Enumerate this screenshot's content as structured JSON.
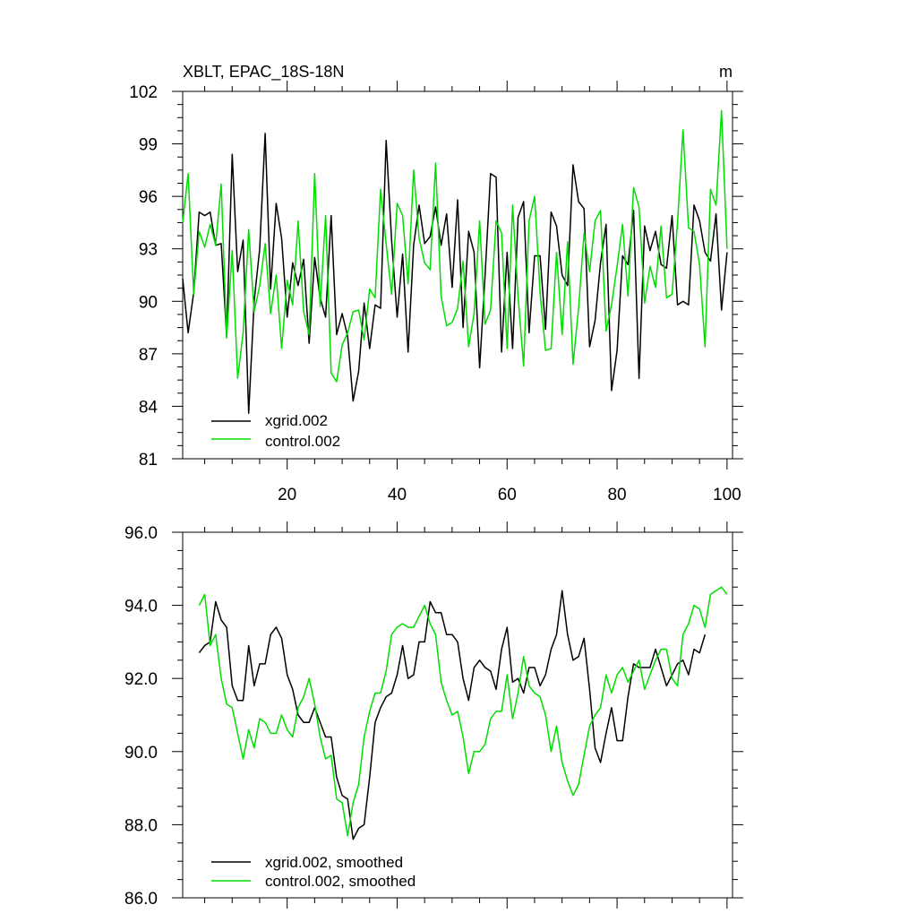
{
  "chart_data": [
    {
      "type": "line",
      "title": "XBLT, EPAC_18S-18N",
      "units": "m",
      "xlim": [
        1,
        101
      ],
      "ylim": [
        81,
        102
      ],
      "x_ticks": [
        20,
        40,
        60,
        80,
        100
      ],
      "y_ticks": [
        81,
        84,
        87,
        90,
        93,
        96,
        99,
        102
      ],
      "y_tick_labels": [
        "81",
        "84",
        "87",
        "90",
        "93",
        "96",
        "99",
        "102"
      ],
      "legend_position": "bottom-left",
      "series": [
        {
          "name": "xgrid.002",
          "color": "#000000",
          "x_start": 1,
          "values": [
            91.3,
            88.2,
            90.5,
            95.1,
            94.9,
            95.1,
            93.2,
            93.3,
            88.0,
            98.4,
            91.7,
            93.5,
            83.6,
            90.0,
            93.0,
            99.6,
            90.7,
            95.6,
            93.6,
            89.1,
            92.2,
            90.9,
            92.4,
            87.6,
            92.5,
            90.2,
            89.1,
            94.9,
            88.1,
            89.3,
            88.0,
            84.3,
            86.0,
            89.9,
            87.3,
            89.8,
            89.6,
            99.2,
            93.5,
            89.1,
            92.7,
            87.1,
            93.2,
            95.5,
            93.3,
            93.7,
            95.4,
            93.2,
            95.0,
            90.8,
            95.8,
            88.5,
            94.0,
            92.8,
            86.2,
            91.5,
            97.3,
            97.1,
            87.1,
            92.8,
            87.3,
            94.8,
            95.7,
            88.2,
            92.6,
            92.6,
            88.4,
            95.1,
            94.3,
            91.5,
            90.9,
            97.8,
            95.7,
            95.3,
            87.4,
            88.9,
            92.2,
            94.4,
            84.9,
            87.2,
            92.6,
            92.1,
            95.2,
            85.6,
            94.3,
            92.9,
            94.0,
            92.1,
            91.9,
            94.9,
            89.8,
            90.0,
            89.8,
            95.5,
            94.6,
            92.8,
            92.3,
            95.0,
            89.5,
            92.8
          ]
        },
        {
          "name": "control.002",
          "color": "#00dd00",
          "x_start": 1,
          "values": [
            94.5,
            97.3,
            90.4,
            94.0,
            93.1,
            94.4,
            93.2,
            96.7,
            87.9,
            92.9,
            85.6,
            88.2,
            94.1,
            89.4,
            90.9,
            93.3,
            89.3,
            91.5,
            87.3,
            91.2,
            89.8,
            94.6,
            89.4,
            88.1,
            97.3,
            89.7,
            94.9,
            85.9,
            85.4,
            87.5,
            88.2,
            89.4,
            89.5,
            87.8,
            90.7,
            90.2,
            96.4,
            93.3,
            90.4,
            95.6,
            94.9,
            91.0,
            97.5,
            93.6,
            92.2,
            91.8,
            97.9,
            90.3,
            88.6,
            88.8,
            89.6,
            92.3,
            87.4,
            89.3,
            94.6,
            88.7,
            89.5,
            94.6,
            93.9,
            87.3,
            95.5,
            90.3,
            86.3,
            94.6,
            96.0,
            90.5,
            87.2,
            87.3,
            92.8,
            88.1,
            93.4,
            86.4,
            89.6,
            93.9,
            91.7,
            94.6,
            95.2,
            88.3,
            89.8,
            92.0,
            94.4,
            90.3,
            96.5,
            95.4,
            89.9,
            92.0,
            90.8,
            94.3,
            90.2,
            90.4,
            94.5,
            99.8,
            94.2,
            94.0,
            92.1,
            87.4,
            96.4,
            95.5,
            100.9,
            93.0
          ]
        }
      ]
    },
    {
      "type": "line",
      "xlim": [
        1,
        101
      ],
      "ylim": [
        86.0,
        96.0
      ],
      "x_ticks": [
        20,
        40,
        60,
        80,
        100
      ],
      "y_ticks": [
        86.0,
        88.0,
        90.0,
        92.0,
        94.0,
        96.0
      ],
      "y_tick_labels": [
        "86.0",
        "88.0",
        "90.0",
        "92.0",
        "94.0",
        "96.0"
      ],
      "legend_position": "bottom-left",
      "series": [
        {
          "name": "xgrid.002, smoothed",
          "color": "#000000",
          "x_start": 4,
          "values": [
            92.7,
            92.9,
            93.0,
            94.1,
            93.6,
            93.4,
            91.8,
            91.4,
            91.4,
            92.9,
            91.8,
            92.4,
            92.4,
            93.2,
            93.4,
            93.1,
            92.1,
            91.7,
            91.0,
            90.8,
            90.8,
            91.2,
            90.8,
            90.4,
            90.4,
            89.3,
            88.8,
            88.7,
            87.6,
            87.9,
            88.0,
            89.3,
            90.8,
            91.2,
            91.5,
            91.6,
            92.1,
            92.9,
            92.0,
            92.1,
            93.0,
            93.0,
            94.1,
            93.8,
            93.8,
            93.2,
            93.2,
            93.0,
            92.0,
            91.4,
            92.3,
            92.5,
            92.3,
            92.2,
            91.7,
            92.8,
            93.4,
            91.9,
            92.0,
            91.6,
            92.3,
            92.3,
            91.8,
            92.1,
            92.8,
            93.2,
            94.4,
            93.2,
            92.5,
            92.6,
            93.1,
            91.7,
            90.1,
            89.7,
            90.5,
            91.2,
            90.3,
            90.3,
            91.5,
            92.4,
            92.3,
            92.3,
            92.3,
            92.8,
            92.3,
            91.8,
            92.1,
            92.4,
            92.5,
            92.1,
            92.8,
            92.7,
            93.2
          ]
        },
        {
          "name": "control.002, smoothed",
          "color": "#00dd00",
          "x_start": 4,
          "values": [
            94.0,
            94.3,
            92.9,
            93.2,
            92.0,
            91.3,
            91.2,
            90.5,
            89.8,
            90.6,
            90.1,
            90.9,
            90.8,
            90.5,
            90.5,
            91.0,
            90.6,
            90.4,
            91.2,
            91.5,
            92.0,
            91.3,
            90.4,
            89.8,
            89.9,
            88.7,
            88.6,
            87.7,
            88.6,
            89.1,
            90.4,
            91.1,
            91.6,
            91.6,
            92.2,
            93.2,
            93.4,
            93.5,
            93.4,
            93.4,
            93.7,
            94.0,
            93.5,
            93.2,
            91.9,
            91.4,
            91.0,
            91.1,
            90.4,
            89.4,
            90.0,
            90.0,
            90.2,
            90.9,
            91.1,
            91.1,
            92.1,
            90.9,
            91.6,
            92.6,
            91.8,
            91.6,
            91.5,
            91.0,
            90.0,
            90.7,
            89.7,
            89.2,
            88.8,
            89.1,
            89.9,
            90.7,
            91.0,
            91.2,
            92.1,
            91.6,
            92.1,
            92.3,
            91.9,
            92.2,
            92.5,
            91.7,
            92.1,
            92.5,
            92.8,
            92.8,
            92.0,
            91.8,
            93.2,
            93.5,
            94.0,
            93.9,
            93.4,
            94.3,
            94.4,
            94.5,
            94.3
          ]
        }
      ]
    }
  ]
}
